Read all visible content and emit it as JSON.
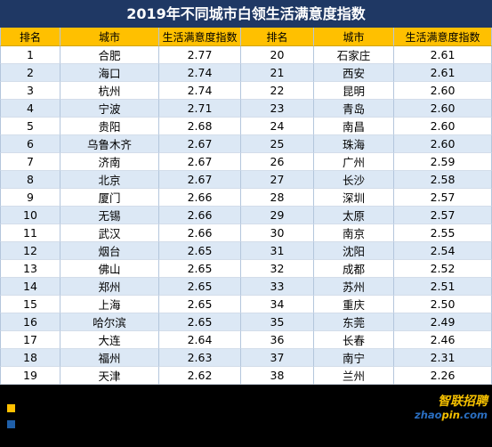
{
  "colors": {
    "title_bg": "#1F3864",
    "header_bg": "#FFC000",
    "stripe_bg": "#DCE8F5",
    "grid_line": "#B4C6DC",
    "row_line": "#D3DDEA",
    "footer_bg": "#000000",
    "legend_yellow": "#FFC000",
    "legend_blue": "#1F5FA8",
    "logo_yellow": "#F5C000",
    "logo_blue": "#2A6EC0"
  },
  "logo": {
    "name_cn": "智联招聘",
    "domain_a": "zhao",
    "domain_b": "pin",
    "domain_c": ".com"
  },
  "chart_data": {
    "type": "table",
    "title": "2019年不同城市白领生活满意度指数",
    "columns": [
      "排名",
      "城市",
      "生活满意度指数"
    ],
    "rows": [
      {
        "rank": 1,
        "city": "合肥",
        "index": 2.77
      },
      {
        "rank": 2,
        "city": "海口",
        "index": 2.74
      },
      {
        "rank": 3,
        "city": "杭州",
        "index": 2.74
      },
      {
        "rank": 4,
        "city": "宁波",
        "index": 2.71
      },
      {
        "rank": 5,
        "city": "贵阳",
        "index": 2.68
      },
      {
        "rank": 6,
        "city": "乌鲁木齐",
        "index": 2.67
      },
      {
        "rank": 7,
        "city": "济南",
        "index": 2.67
      },
      {
        "rank": 8,
        "city": "北京",
        "index": 2.67
      },
      {
        "rank": 9,
        "city": "厦门",
        "index": 2.66
      },
      {
        "rank": 10,
        "city": "无锡",
        "index": 2.66
      },
      {
        "rank": 11,
        "city": "武汉",
        "index": 2.66
      },
      {
        "rank": 12,
        "city": "烟台",
        "index": 2.65
      },
      {
        "rank": 13,
        "city": "佛山",
        "index": 2.65
      },
      {
        "rank": 14,
        "city": "郑州",
        "index": 2.65
      },
      {
        "rank": 15,
        "city": "上海",
        "index": 2.65
      },
      {
        "rank": 16,
        "city": "哈尔滨",
        "index": 2.65
      },
      {
        "rank": 17,
        "city": "大连",
        "index": 2.64
      },
      {
        "rank": 18,
        "city": "福州",
        "index": 2.63
      },
      {
        "rank": 19,
        "city": "天津",
        "index": 2.62
      },
      {
        "rank": 20,
        "city": "石家庄",
        "index": 2.61
      },
      {
        "rank": 21,
        "city": "西安",
        "index": 2.61
      },
      {
        "rank": 22,
        "city": "昆明",
        "index": 2.6
      },
      {
        "rank": 23,
        "city": "青岛",
        "index": 2.6
      },
      {
        "rank": 24,
        "city": "南昌",
        "index": 2.6
      },
      {
        "rank": 25,
        "city": "珠海",
        "index": 2.6
      },
      {
        "rank": 26,
        "city": "广州",
        "index": 2.59
      },
      {
        "rank": 27,
        "city": "长沙",
        "index": 2.58
      },
      {
        "rank": 28,
        "city": "深圳",
        "index": 2.57
      },
      {
        "rank": 29,
        "city": "太原",
        "index": 2.57
      },
      {
        "rank": 30,
        "city": "南京",
        "index": 2.55
      },
      {
        "rank": 31,
        "city": "沈阳",
        "index": 2.54
      },
      {
        "rank": 32,
        "city": "成都",
        "index": 2.52
      },
      {
        "rank": 33,
        "city": "苏州",
        "index": 2.51
      },
      {
        "rank": 34,
        "city": "重庆",
        "index": 2.5
      },
      {
        "rank": 35,
        "city": "东莞",
        "index": 2.49
      },
      {
        "rank": 36,
        "city": "长春",
        "index": 2.46
      },
      {
        "rank": 37,
        "city": "南宁",
        "index": 2.31
      },
      {
        "rank": 38,
        "city": "兰州",
        "index": 2.26
      }
    ]
  }
}
